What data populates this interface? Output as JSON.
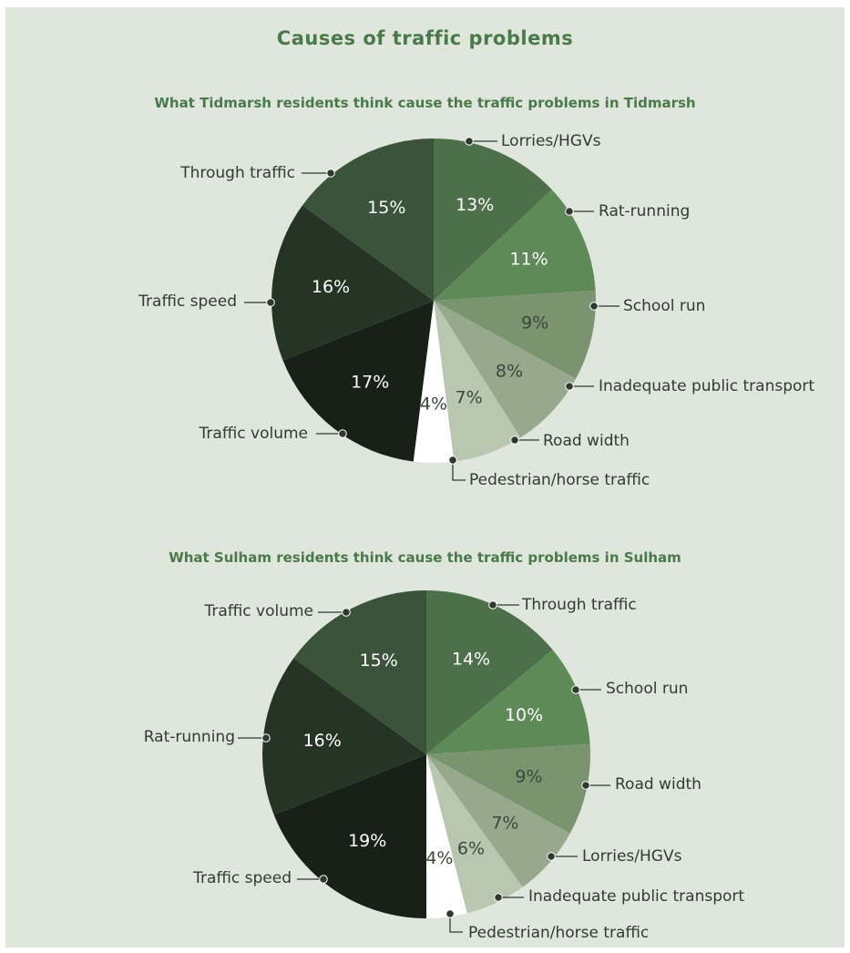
{
  "title": "Causes of traffic problems",
  "chart_data": [
    {
      "type": "pie",
      "title": "What Tidmarsh residents think cause the traffic problems in Tidmarsh",
      "slices": [
        {
          "label": "Lorries/HGVs",
          "value": 13,
          "value_label": "13%",
          "color": "#4d6f49"
        },
        {
          "label": "Rat-running",
          "value": 11,
          "value_label": "11%",
          "color": "#5e8a57"
        },
        {
          "label": "School run",
          "value": 9,
          "value_label": "9%",
          "color": "#7b9470"
        },
        {
          "label": "Inadequate public transport",
          "value": 8,
          "value_label": "8%",
          "color": "#96a98c"
        },
        {
          "label": "Road width",
          "value": 7,
          "value_label": "7%",
          "color": "#b9c7b1"
        },
        {
          "label": "Pedestrian/horse traffic",
          "value": 4,
          "value_label": "4%",
          "color": "#ffffff"
        },
        {
          "label": "Traffic volume",
          "value": 17,
          "value_label": "17%",
          "color": "#182118"
        },
        {
          "label": "Traffic speed",
          "value": 16,
          "value_label": "16%",
          "color": "#253425"
        },
        {
          "label": "Through traffic",
          "value": 15,
          "value_label": "15%",
          "color": "#3a533a"
        }
      ]
    },
    {
      "type": "pie",
      "title": "What Sulham residents think cause the traffic problems in Sulham",
      "slices": [
        {
          "label": "Through traffic",
          "value": 14,
          "value_label": "14%",
          "color": "#4d6f49"
        },
        {
          "label": "School run",
          "value": 10,
          "value_label": "10%",
          "color": "#5e8a57"
        },
        {
          "label": "Road width",
          "value": 9,
          "value_label": "9%",
          "color": "#7b9470"
        },
        {
          "label": "Lorries/HGVs",
          "value": 7,
          "value_label": "7%",
          "color": "#96a98c"
        },
        {
          "label": "Inadequate public transport",
          "value": 6,
          "value_label": "6%",
          "color": "#b9c7b1"
        },
        {
          "label": "Pedestrian/horse traffic",
          "value": 4,
          "value_label": "4%",
          "color": "#ffffff"
        },
        {
          "label": "Traffic speed",
          "value": 19,
          "value_label": "19%",
          "color": "#182118"
        },
        {
          "label": "Rat-running",
          "value": 16,
          "value_label": "16%",
          "color": "#253425"
        },
        {
          "label": "Traffic volume",
          "value": 15,
          "value_label": "15%",
          "color": "#3a533a"
        }
      ]
    }
  ]
}
